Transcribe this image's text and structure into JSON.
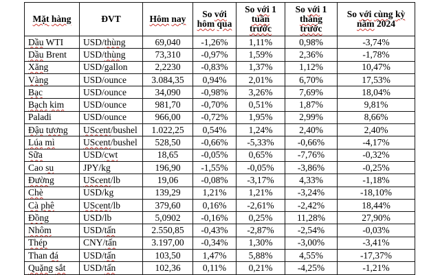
{
  "colors": {
    "background": "#ffffff",
    "text": "#000000",
    "border": "#141414",
    "spellcheck": "#c9352e"
  },
  "style": {
    "spellcheck_extra_tokens": [
      "nay",
      "qua",
      "kim",
      "su",
      "cwt",
      "UScent"
    ]
  },
  "chart_data": {
    "type": "table",
    "columns": [
      "Mặt hàng",
      "ĐVT",
      "Hôm nay",
      "So với hôm qua",
      "So với 1 tuần trước",
      "So với 1 tháng trước",
      "So với cùng kỳ năm 2024"
    ],
    "rows": [
      [
        "Dầu WTI",
        "USD/thùng",
        "69,040",
        "-1,26%",
        "1,11%",
        "0,98%",
        "-3,74%"
      ],
      [
        "Dầu Brent",
        "USD/thùng",
        "73,310",
        "-0,97%",
        "1,59%",
        "2,36%",
        "-1,78%"
      ],
      [
        "Xăng",
        "USD/gallon",
        "2,2230",
        "-0,83%",
        "1,37%",
        "1,12%",
        "10,47%"
      ],
      [
        "Vàng",
        "USD/ounce",
        "3.084,35",
        "0,94%",
        "2,01%",
        "6,70%",
        "17,53%"
      ],
      [
        "Bạc",
        "USD/ounce",
        "34,090",
        "-0,98%",
        "3,26%",
        "7,69%",
        "18,04%"
      ],
      [
        "Bạch kim",
        "USD/ounce",
        "981,70",
        "-0,70%",
        "0,51%",
        "1,87%",
        "9,81%"
      ],
      [
        "Paladi",
        "USD/ounce",
        "966,00",
        "-0,72%",
        "1,95%",
        "2,99%",
        "8,66%"
      ],
      [
        "Đậu tương",
        "UScent/bushel",
        "1.022,25",
        "0,54%",
        "1,24%",
        "2,40%",
        "2,40%"
      ],
      [
        "Lúa mì",
        "UScent/bushel",
        "528,50",
        "-0,66%",
        "-5,33%",
        "-0,66%",
        "-4,17%"
      ],
      [
        "Sữa",
        "USD/cwt",
        "18,65",
        "-0,05%",
        "0,65%",
        "-7,76%",
        "-0,32%"
      ],
      [
        "Cao su",
        "JPY/kg",
        "196,90",
        "-1,55%",
        "-0,05%",
        "-3,86%",
        "-0,25%"
      ],
      [
        "Đường",
        "UScent/lb",
        "19,06",
        "-0,08%",
        "-3,17%",
        "4,33%",
        "-1,18%"
      ],
      [
        "Chè",
        "USD/kg",
        "139,29",
        "1,21%",
        "1,21%",
        "-3,24%",
        "-18,10%"
      ],
      [
        "Cà phê",
        "UScent/lb",
        "379,60",
        "0,16%",
        "-2,61%",
        "-2,42%",
        "18,44%"
      ],
      [
        "Đồng",
        "USD/lb",
        "5,0902",
        "-0,16%",
        "0,25%",
        "11,28%",
        "27,90%"
      ],
      [
        "Nhôm",
        "USD/tấn",
        "2.550,85",
        "-0,43%",
        "-2,87%",
        "-2,54%",
        "-0,03%"
      ],
      [
        "Thép",
        "CNY/tấn",
        "3.197,00",
        "-0,34%",
        "1,30%",
        "-3,00%",
        "-3,41%"
      ],
      [
        "Than đá",
        "USD/tấn",
        "103,50",
        "1,47%",
        "5,88%",
        "4,55%",
        "-17,37%"
      ],
      [
        "Quặng sắt",
        "USD/tấn",
        "102,36",
        "0,11%",
        "0,21%",
        "-4,25%",
        "-1,21%"
      ]
    ]
  }
}
